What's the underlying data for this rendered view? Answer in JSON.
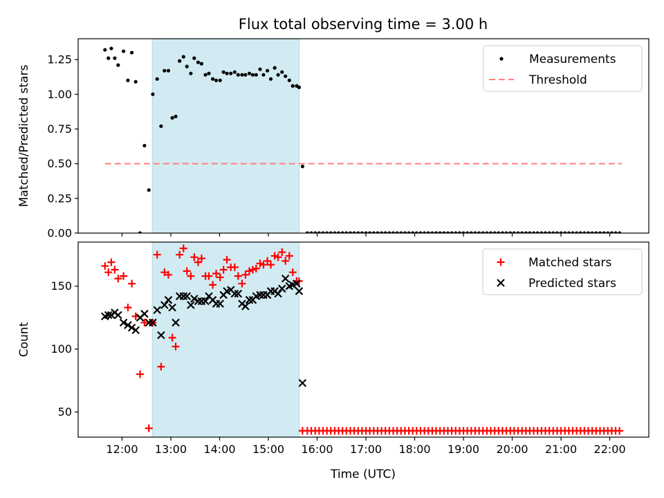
{
  "chart_data": {
    "title": "Flux total observing time = 3.00 h",
    "xlabel": "Time (UTC)",
    "x_unit": "hours UTC",
    "xlim": [
      11.1,
      22.8
    ],
    "xticks": [
      12,
      13,
      14,
      15,
      16,
      17,
      18,
      19,
      20,
      21,
      22
    ],
    "xtick_labels": [
      "12:00",
      "13:00",
      "14:00",
      "15:00",
      "16:00",
      "17:00",
      "18:00",
      "19:00",
      "20:00",
      "21:00",
      "22:00"
    ],
    "highlight_span": {
      "from": 12.62,
      "to": 15.63,
      "color": "#add8e6"
    },
    "top": {
      "type": "scatter",
      "ylabel": "Matched/Predicted stars",
      "ylim": [
        0,
        1.4
      ],
      "yticks": [
        0,
        0.25,
        0.5,
        0.75,
        1.0,
        1.25
      ],
      "ytick_labels": [
        "0.00",
        "0.25",
        "0.50",
        "0.75",
        "1.00",
        "1.25"
      ],
      "legend_position": "top-right",
      "series": [
        {
          "name": "Measurements",
          "kind": "dots",
          "color": "#000000",
          "x": [
            11.65,
            11.72,
            11.78,
            11.85,
            11.92,
            12.03,
            12.12,
            12.2,
            12.28,
            12.37,
            12.46,
            12.55,
            12.63,
            12.72,
            12.8,
            12.87,
            12.95,
            13.03,
            13.1,
            13.18,
            13.26,
            13.33,
            13.41,
            13.48,
            13.56,
            13.63,
            13.71,
            13.78,
            13.86,
            13.93,
            14.01,
            14.08,
            14.15,
            14.23,
            14.31,
            14.38,
            14.46,
            14.53,
            14.61,
            14.68,
            14.75,
            14.83,
            14.9,
            14.98,
            15.05,
            15.13,
            15.2,
            15.28,
            15.35,
            15.43,
            15.5,
            15.58,
            15.63,
            15.7,
            15.8,
            15.88,
            15.96,
            16.04,
            16.12,
            16.2,
            16.28,
            16.36,
            16.44,
            16.52,
            16.6,
            16.68,
            16.76,
            16.84,
            16.92,
            17.0,
            17.08,
            17.16,
            17.24,
            17.32,
            17.4,
            17.48,
            17.56,
            17.64,
            17.72,
            17.8,
            17.88,
            17.96,
            18.04,
            18.12,
            18.2,
            18.28,
            18.36,
            18.44,
            18.52,
            18.6,
            18.68,
            18.76,
            18.84,
            18.92,
            19.0,
            19.08,
            19.16,
            19.24,
            19.32,
            19.4,
            19.48,
            19.56,
            19.64,
            19.72,
            19.8,
            19.88,
            19.96,
            20.04,
            20.12,
            20.2,
            20.28,
            20.36,
            20.44,
            20.52,
            20.6,
            20.68,
            20.76,
            20.84,
            20.92,
            21.0,
            21.08,
            21.16,
            21.24,
            21.32,
            21.4,
            21.48,
            21.56,
            21.64,
            21.72,
            21.8,
            21.88,
            21.96,
            22.04,
            22.12,
            22.2
          ],
          "y": [
            1.32,
            1.26,
            1.33,
            1.26,
            1.21,
            1.31,
            1.1,
            1.3,
            1.09,
            0.0,
            0.63,
            0.31,
            1.0,
            1.11,
            0.77,
            1.17,
            1.17,
            0.83,
            0.84,
            1.24,
            1.27,
            1.2,
            1.15,
            1.26,
            1.23,
            1.22,
            1.14,
            1.15,
            1.11,
            1.1,
            1.1,
            1.16,
            1.15,
            1.15,
            1.16,
            1.14,
            1.14,
            1.14,
            1.15,
            1.14,
            1.14,
            1.18,
            1.14,
            1.17,
            1.11,
            1.19,
            1.14,
            1.16,
            1.13,
            1.1,
            1.06,
            1.06,
            1.05,
            0.48,
            0,
            0,
            0,
            0,
            0,
            0,
            0,
            0,
            0,
            0,
            0,
            0,
            0,
            0,
            0,
            0,
            0,
            0,
            0,
            0,
            0,
            0,
            0,
            0,
            0,
            0,
            0,
            0,
            0,
            0,
            0,
            0,
            0,
            0,
            0,
            0,
            0,
            0,
            0,
            0,
            0,
            0,
            0,
            0,
            0,
            0,
            0,
            0,
            0,
            0,
            0,
            0,
            0,
            0,
            0,
            0,
            0,
            0,
            0,
            0,
            0,
            0,
            0,
            0,
            0,
            0,
            0,
            0,
            0,
            0,
            0,
            0,
            0,
            0,
            0,
            0,
            0,
            0,
            0,
            0,
            0
          ]
        },
        {
          "name": "Threshold",
          "kind": "dashed-line",
          "color": "#ff7f7f",
          "x": [
            11.65,
            22.25
          ],
          "y": [
            0.5,
            0.5
          ]
        }
      ]
    },
    "bottom": {
      "type": "scatter",
      "ylabel": "Count",
      "ylim": [
        30,
        185
      ],
      "yticks": [
        50,
        100,
        150
      ],
      "ytick_labels": [
        "50",
        "100",
        "150"
      ],
      "legend_position": "top-right",
      "series": [
        {
          "name": "Matched stars",
          "kind": "plus",
          "color": "#ff0000",
          "x": [
            11.65,
            11.72,
            11.78,
            11.85,
            11.92,
            12.03,
            12.12,
            12.2,
            12.28,
            12.37,
            12.46,
            12.55,
            12.63,
            12.72,
            12.8,
            12.87,
            12.95,
            13.03,
            13.1,
            13.18,
            13.26,
            13.33,
            13.41,
            13.48,
            13.56,
            13.63,
            13.71,
            13.78,
            13.86,
            13.93,
            14.01,
            14.08,
            14.15,
            14.23,
            14.31,
            14.38,
            14.46,
            14.53,
            14.61,
            14.68,
            14.75,
            14.83,
            14.9,
            14.98,
            15.05,
            15.13,
            15.2,
            15.28,
            15.35,
            15.43,
            15.5,
            15.58,
            15.63,
            15.7,
            15.8,
            15.88,
            15.96,
            16.04,
            16.12,
            16.2,
            16.28,
            16.36,
            16.44,
            16.52,
            16.6,
            16.68,
            16.76,
            16.84,
            16.92,
            17.0,
            17.08,
            17.16,
            17.24,
            17.32,
            17.4,
            17.48,
            17.56,
            17.64,
            17.72,
            17.8,
            17.88,
            17.96,
            18.04,
            18.12,
            18.2,
            18.28,
            18.36,
            18.44,
            18.52,
            18.6,
            18.68,
            18.76,
            18.84,
            18.92,
            19.0,
            19.08,
            19.16,
            19.24,
            19.32,
            19.4,
            19.48,
            19.56,
            19.64,
            19.72,
            19.8,
            19.88,
            19.96,
            20.04,
            20.12,
            20.2,
            20.28,
            20.36,
            20.44,
            20.52,
            20.6,
            20.68,
            20.76,
            20.84,
            20.92,
            21.0,
            21.08,
            21.16,
            21.24,
            21.32,
            21.4,
            21.48,
            21.56,
            21.64,
            21.72,
            21.8,
            21.88,
            21.96,
            22.04,
            22.12,
            22.2
          ],
          "y": [
            166,
            161,
            169,
            163,
            156,
            158,
            133,
            152,
            126,
            80,
            121,
            37,
            121,
            175,
            86,
            161,
            159,
            109,
            102,
            175,
            180,
            162,
            158,
            173,
            169,
            172,
            158,
            158,
            151,
            160,
            157,
            163,
            171,
            165,
            165,
            158,
            152,
            159,
            162,
            163,
            164,
            168,
            167,
            170,
            167,
            174,
            173,
            177,
            170,
            174,
            161,
            154,
            154,
            35,
            35,
            35,
            35,
            35,
            35,
            35,
            35,
            35,
            35,
            35,
            35,
            35,
            35,
            35,
            35,
            35,
            35,
            35,
            35,
            35,
            35,
            35,
            35,
            35,
            35,
            35,
            35,
            35,
            35,
            35,
            35,
            35,
            35,
            35,
            35,
            35,
            35,
            35,
            35,
            35,
            35,
            35,
            35,
            35,
            35,
            35,
            35,
            35,
            35,
            35,
            35,
            35,
            35,
            35,
            35,
            35,
            35,
            35,
            35,
            35,
            35,
            35,
            35,
            35,
            35,
            35,
            35,
            35,
            35,
            35,
            35,
            35,
            35,
            35,
            35,
            35,
            35,
            35,
            35,
            35,
            35
          ]
        },
        {
          "name": "Predicted stars",
          "kind": "cross",
          "color": "#000000",
          "x": [
            11.65,
            11.72,
            11.78,
            11.85,
            11.92,
            12.03,
            12.12,
            12.2,
            12.28,
            12.37,
            12.46,
            12.55,
            12.63,
            12.72,
            12.8,
            12.87,
            12.95,
            13.03,
            13.1,
            13.18,
            13.26,
            13.33,
            13.41,
            13.48,
            13.56,
            13.63,
            13.71,
            13.78,
            13.86,
            13.93,
            14.01,
            14.08,
            14.15,
            14.23,
            14.31,
            14.38,
            14.46,
            14.53,
            14.61,
            14.68,
            14.75,
            14.83,
            14.9,
            14.98,
            15.05,
            15.13,
            15.2,
            15.28,
            15.35,
            15.43,
            15.5,
            15.58,
            15.63,
            15.7
          ],
          "y": [
            126,
            127,
            127,
            129,
            127,
            121,
            119,
            117,
            115,
            125,
            128,
            121,
            121,
            131,
            111,
            135,
            139,
            133,
            121,
            142,
            142,
            142,
            135,
            140,
            138,
            138,
            138,
            142,
            139,
            136,
            136,
            143,
            146,
            147,
            144,
            144,
            136,
            134,
            139,
            139,
            142,
            143,
            143,
            143,
            146,
            146,
            144,
            148,
            156,
            150,
            151,
            152,
            146,
            73
          ]
        }
      ]
    }
  }
}
